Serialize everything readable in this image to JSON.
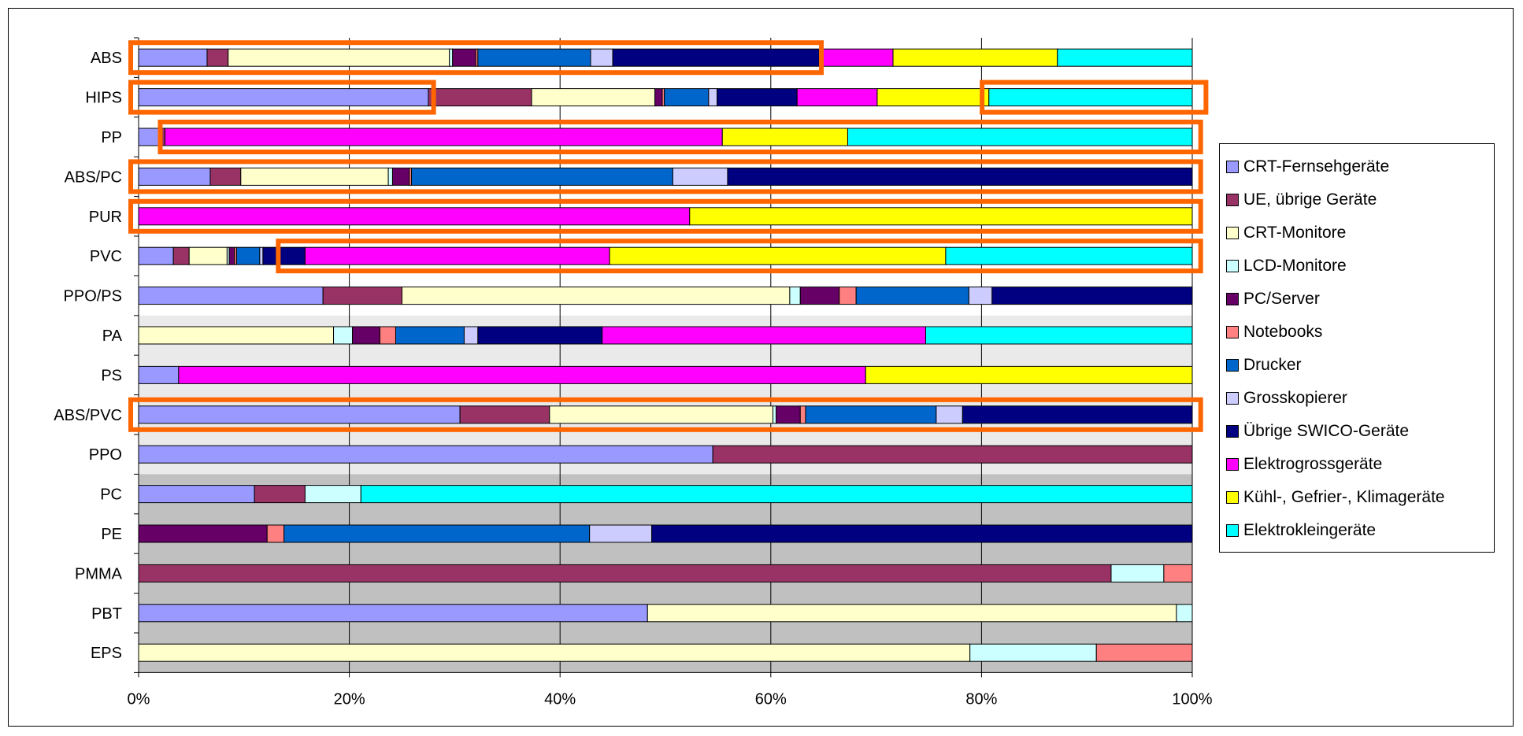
{
  "chart_data": {
    "type": "bar",
    "orientation": "horizontal",
    "stacked": "percent",
    "categories": [
      "ABS",
      "HIPS",
      "PP",
      "ABS/PC",
      "PUR",
      "PVC",
      "PPO/PS",
      "PA",
      "PS",
      "ABS/PVC",
      "PPO",
      "PC",
      "PE",
      "PMMA",
      "PBT",
      "EPS"
    ],
    "xlim": [
      0,
      100
    ],
    "x_ticks": [
      "0%",
      "20%",
      "40%",
      "60%",
      "80%",
      "100%"
    ],
    "grid": "vertical",
    "legend_position": "right",
    "series": [
      {
        "name": "CRT-Fernsehgeräte",
        "color": "#9999FF",
        "values": [
          6.5,
          27.5,
          2.0,
          6.8,
          0,
          3.3,
          17.5,
          0,
          3.8,
          30.5,
          54.5,
          11.0,
          0,
          0,
          48.3,
          0
        ]
      },
      {
        "name": "UE, übrige Geräte",
        "color": "#993366",
        "values": [
          2.0,
          9.8,
          0.5,
          2.9,
          0,
          1.5,
          7.5,
          0,
          0,
          8.5,
          45.5,
          4.8,
          0,
          92.3,
          0,
          0
        ]
      },
      {
        "name": "CRT-Monitore",
        "color": "#FFFFCC",
        "values": [
          21.0,
          11.7,
          0,
          14.0,
          0,
          3.6,
          36.8,
          18.5,
          0,
          21.2,
          0,
          0,
          0,
          0,
          50.2,
          78.9
        ]
      },
      {
        "name": "LCD-Monitore",
        "color": "#CCFFFF",
        "values": [
          0.3,
          0,
          0,
          0.4,
          0,
          0.2,
          1.0,
          1.8,
          0,
          0.3,
          0,
          5.3,
          0,
          5.0,
          1.5,
          12.0
        ]
      },
      {
        "name": "PC/Server",
        "color": "#660066",
        "values": [
          2.2,
          0.7,
          0,
          1.6,
          0,
          0.5,
          3.7,
          2.6,
          0,
          2.3,
          0,
          0,
          12.2,
          0,
          0,
          0
        ]
      },
      {
        "name": "Notebooks",
        "color": "#FF8080",
        "values": [
          0.2,
          0.2,
          0,
          0.2,
          0,
          0.2,
          1.6,
          1.5,
          0,
          0.5,
          0,
          0,
          1.6,
          2.7,
          0,
          9.1
        ]
      },
      {
        "name": "Drucker",
        "color": "#0066CC",
        "values": [
          10.7,
          4.2,
          0,
          24.8,
          0,
          2.2,
          10.7,
          6.5,
          0,
          12.4,
          0,
          0,
          29.0,
          0,
          0,
          0
        ]
      },
      {
        "name": "Grosskopierer",
        "color": "#CCCCFF",
        "values": [
          2.1,
          0.8,
          0,
          5.2,
          0,
          0.3,
          2.2,
          1.3,
          0,
          2.5,
          0,
          0,
          5.9,
          0,
          0,
          0
        ]
      },
      {
        "name": "Übrige SWICO-Geräte",
        "color": "#000080",
        "values": [
          19.6,
          7.6,
          0,
          44.1,
          0,
          4.0,
          19.0,
          11.8,
          0,
          21.8,
          0,
          0,
          51.3,
          0,
          0,
          0
        ]
      },
      {
        "name": "Elektrogrossgeräte",
        "color": "#FF00FF",
        "values": [
          7.0,
          7.6,
          52.9,
          0,
          52.3,
          28.9,
          0,
          30.7,
          65.2,
          0,
          0,
          0,
          0,
          0,
          0,
          0
        ]
      },
      {
        "name": "Kühl-, Gefrier-, Klimageräte",
        "color": "#FFFF00",
        "values": [
          15.6,
          10.6,
          11.9,
          0,
          47.7,
          31.9,
          0,
          0,
          31.0,
          0,
          0,
          0,
          0,
          0,
          0,
          0
        ]
      },
      {
        "name": "Elektrokleingeräte",
        "color": "#00FFFF",
        "values": [
          12.8,
          19.3,
          32.7,
          0,
          0,
          23.4,
          0,
          25.3,
          0,
          0,
          0,
          78.9,
          0,
          0,
          0,
          0
        ]
      }
    ],
    "highlights": [
      {
        "category": "ABS",
        "from": 0,
        "to": 64.8
      },
      {
        "category": "HIPS",
        "from": 0,
        "to": 28.0
      },
      {
        "category": "HIPS",
        "from": 80.8,
        "to": 101.3
      },
      {
        "category": "PP",
        "from": 2.8,
        "to": 100.8
      },
      {
        "category": "ABS/PC",
        "from": 0,
        "to": 100.8
      },
      {
        "category": "PUR",
        "from": 0,
        "to": 100.8
      },
      {
        "category": "PVC",
        "from": 14.0,
        "to": 100.8
      },
      {
        "category": "ABS/PVC",
        "from": 0,
        "to": 100.8
      }
    ],
    "highlight_color": "#FF6600",
    "plot_background_bands": [
      "#FFFFFF",
      "#EAEAEA",
      "#C0C0C0"
    ]
  }
}
